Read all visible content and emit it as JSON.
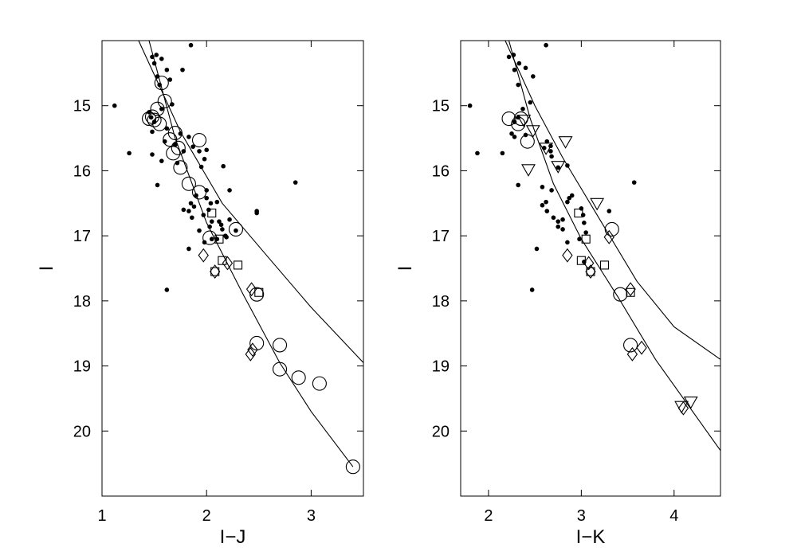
{
  "chart_data": [
    {
      "type": "scatter",
      "title": "",
      "xlabel": "I−J",
      "ylabel": "I",
      "xlim": [
        1.0,
        3.5
      ],
      "ylim": [
        21.0,
        14.0
      ],
      "y_inverted": true,
      "grid": false,
      "x_ticks": [
        "1",
        "2",
        "3"
      ],
      "y_ticks": [
        "15",
        "16",
        "17",
        "18",
        "19",
        "20"
      ],
      "series": [
        {
          "marker": "dot",
          "points": [
            [
              1.48,
              14.25
            ],
            [
              1.52,
              14.22
            ],
            [
              1.57,
              14.28
            ],
            [
              1.62,
              14.45
            ],
            [
              1.5,
              14.35
            ],
            [
              1.77,
              14.45
            ],
            [
              1.85,
              14.07
            ],
            [
              1.53,
              14.55
            ],
            [
              1.65,
              14.6
            ],
            [
              1.55,
              14.68
            ],
            [
              1.67,
              14.98
            ],
            [
              1.12,
              15.0
            ],
            [
              1.57,
              15.05
            ],
            [
              1.45,
              15.1
            ],
            [
              1.47,
              15.18
            ],
            [
              1.5,
              15.25
            ],
            [
              1.62,
              15.35
            ],
            [
              1.48,
              15.4
            ],
            [
              1.75,
              15.43
            ],
            [
              1.83,
              15.48
            ],
            [
              1.6,
              15.55
            ],
            [
              1.87,
              15.63
            ],
            [
              1.7,
              15.6
            ],
            [
              1.78,
              15.7
            ],
            [
              1.26,
              15.73
            ],
            [
              1.48,
              15.75
            ],
            [
              1.93,
              15.7
            ],
            [
              2.0,
              15.68
            ],
            [
              1.98,
              15.82
            ],
            [
              1.57,
              15.85
            ],
            [
              1.72,
              15.88
            ],
            [
              1.95,
              15.94
            ],
            [
              2.16,
              15.93
            ],
            [
              1.53,
              16.22
            ],
            [
              2.0,
              16.3
            ],
            [
              2.22,
              16.3
            ],
            [
              1.9,
              16.38
            ],
            [
              2.0,
              16.42
            ],
            [
              2.04,
              16.5
            ],
            [
              2.1,
              16.48
            ],
            [
              1.85,
              16.5
            ],
            [
              1.88,
              16.55
            ],
            [
              1.83,
              16.62
            ],
            [
              1.78,
              16.6
            ],
            [
              2.02,
              16.6
            ],
            [
              1.97,
              16.68
            ],
            [
              1.86,
              16.72
            ],
            [
              2.22,
              16.75
            ],
            [
              2.12,
              16.78
            ],
            [
              2.05,
              16.78
            ],
            [
              2.14,
              16.83
            ],
            [
              2.03,
              16.86
            ],
            [
              2.15,
              16.9
            ],
            [
              2.28,
              16.92
            ],
            [
              1.93,
              16.92
            ],
            [
              2.18,
              17.0
            ],
            [
              2.05,
              17.05
            ],
            [
              2.1,
              17.05
            ],
            [
              2.19,
              17.02
            ],
            [
              1.98,
              17.1
            ],
            [
              1.83,
              17.2
            ],
            [
              2.48,
              16.62
            ],
            [
              2.48,
              16.65
            ],
            [
              2.85,
              16.18
            ],
            [
              1.62,
              17.83
            ]
          ]
        },
        {
          "marker": "open-circle",
          "points": [
            [
              1.57,
              14.65
            ],
            [
              1.6,
              14.93
            ],
            [
              1.53,
              15.05
            ],
            [
              1.48,
              15.17
            ],
            [
              1.5,
              15.22
            ],
            [
              1.45,
              15.2
            ],
            [
              1.55,
              15.28
            ],
            [
              1.7,
              15.42
            ],
            [
              1.65,
              15.52
            ],
            [
              1.73,
              15.65
            ],
            [
              1.68,
              15.73
            ],
            [
              1.93,
              15.53
            ],
            [
              1.75,
              15.95
            ],
            [
              1.83,
              16.2
            ],
            [
              1.93,
              16.33
            ],
            [
              2.03,
              17.03
            ],
            [
              2.28,
              16.9
            ],
            [
              2.48,
              17.9
            ],
            [
              2.48,
              18.65
            ],
            [
              2.7,
              18.68
            ],
            [
              2.7,
              19.05
            ],
            [
              2.88,
              19.18
            ],
            [
              3.08,
              19.27
            ],
            [
              3.4,
              20.55
            ]
          ]
        },
        {
          "marker": "open-square",
          "points": [
            [
              2.05,
              16.65
            ],
            [
              2.12,
              17.05
            ],
            [
              2.15,
              17.38
            ],
            [
              2.3,
              17.45
            ],
            [
              2.08,
              17.55
            ],
            [
              2.5,
              17.87
            ]
          ]
        },
        {
          "marker": "open-diamond",
          "points": [
            [
              1.97,
              17.3
            ],
            [
              2.2,
              17.42
            ],
            [
              2.08,
              17.55
            ],
            [
              2.43,
              17.82
            ],
            [
              2.44,
              18.75
            ],
            [
              2.42,
              18.82
            ]
          ]
        }
      ],
      "curves": [
        {
          "name": "",
          "points": [
            [
              1.35,
              14.0
            ],
            [
              1.75,
              15.4
            ],
            [
              2.15,
              16.5
            ],
            [
              2.6,
              17.35
            ],
            [
              3.0,
              18.1
            ],
            [
              3.5,
              18.95
            ]
          ]
        },
        {
          "name": "",
          "points": [
            [
              1.45,
              14.0
            ],
            [
              1.7,
              15.5
            ],
            [
              2.0,
              16.8
            ],
            [
              2.35,
              17.9
            ],
            [
              2.7,
              18.95
            ],
            [
              3.0,
              19.7
            ],
            [
              3.4,
              20.55
            ]
          ]
        }
      ]
    },
    {
      "type": "scatter",
      "title": "",
      "xlabel": "I−K",
      "ylabel": "I",
      "xlim": [
        1.7,
        4.5
      ],
      "ylim": [
        21.0,
        14.0
      ],
      "y_inverted": true,
      "grid": false,
      "x_ticks": [
        "2",
        "3",
        "4"
      ],
      "y_ticks": [
        "15",
        "16",
        "17",
        "18",
        "19",
        "20"
      ],
      "series": [
        {
          "marker": "dot",
          "points": [
            [
              2.22,
              14.25
            ],
            [
              2.27,
              14.22
            ],
            [
              2.33,
              14.35
            ],
            [
              2.4,
              14.42
            ],
            [
              2.28,
              14.45
            ],
            [
              2.48,
              14.55
            ],
            [
              2.62,
              14.07
            ],
            [
              2.32,
              14.68
            ],
            [
              2.45,
              14.95
            ],
            [
              1.8,
              15.0
            ],
            [
              2.37,
              15.05
            ],
            [
              2.32,
              15.18
            ],
            [
              2.28,
              15.25
            ],
            [
              2.25,
              15.43
            ],
            [
              2.28,
              15.48
            ],
            [
              2.4,
              15.45
            ],
            [
              2.63,
              15.55
            ],
            [
              2.67,
              15.62
            ],
            [
              2.6,
              15.65
            ],
            [
              2.67,
              15.7
            ],
            [
              1.88,
              15.73
            ],
            [
              2.15,
              15.73
            ],
            [
              2.68,
              15.78
            ],
            [
              2.85,
              15.92
            ],
            [
              2.75,
              15.95
            ],
            [
              2.32,
              16.22
            ],
            [
              2.58,
              16.25
            ],
            [
              2.68,
              16.3
            ],
            [
              2.9,
              16.38
            ],
            [
              2.87,
              16.42
            ],
            [
              2.85,
              16.48
            ],
            [
              2.62,
              16.48
            ],
            [
              2.58,
              16.53
            ],
            [
              3.0,
              16.58
            ],
            [
              2.63,
              16.62
            ],
            [
              3.02,
              16.68
            ],
            [
              2.7,
              16.72
            ],
            [
              2.8,
              16.75
            ],
            [
              2.75,
              16.78
            ],
            [
              3.03,
              16.8
            ],
            [
              2.75,
              16.86
            ],
            [
              2.8,
              16.9
            ],
            [
              3.05,
              16.95
            ],
            [
              2.98,
              17.05
            ],
            [
              2.85,
              17.1
            ],
            [
              2.52,
              17.2
            ],
            [
              3.03,
              17.4
            ],
            [
              3.3,
              16.62
            ],
            [
              3.57,
              16.18
            ],
            [
              2.47,
              17.83
            ]
          ]
        },
        {
          "marker": "open-circle",
          "points": [
            [
              2.35,
              15.2
            ],
            [
              2.22,
              15.2
            ],
            [
              2.32,
              15.28
            ],
            [
              2.42,
              15.55
            ],
            [
              3.33,
              16.9
            ],
            [
              3.42,
              17.9
            ],
            [
              3.53,
              18.68
            ]
          ]
        },
        {
          "marker": "open-square",
          "points": [
            [
              2.97,
              16.65
            ],
            [
              3.05,
              17.05
            ],
            [
              3.0,
              17.38
            ],
            [
              3.25,
              17.45
            ],
            [
              3.1,
              17.55
            ],
            [
              3.53,
              17.87
            ]
          ]
        },
        {
          "marker": "open-diamond",
          "points": [
            [
              2.85,
              17.3
            ],
            [
              3.08,
              17.42
            ],
            [
              3.1,
              17.55
            ],
            [
              3.3,
              17.02
            ],
            [
              3.53,
              17.82
            ],
            [
              3.55,
              18.82
            ],
            [
              3.65,
              18.72
            ],
            [
              4.1,
              19.65
            ]
          ]
        },
        {
          "marker": "open-triangle-down",
          "points": [
            [
              2.38,
              15.22
            ],
            [
              2.48,
              15.38
            ],
            [
              2.62,
              15.65
            ],
            [
              2.83,
              15.55
            ],
            [
              2.75,
              15.93
            ],
            [
              2.43,
              15.98
            ],
            [
              3.17,
              16.5
            ],
            [
              4.18,
              19.55
            ],
            [
              4.08,
              19.62
            ]
          ]
        }
      ],
      "curves": [
        {
          "name": "",
          "points": [
            [
              2.18,
              14.0
            ],
            [
              2.5,
              15.0
            ],
            [
              2.8,
              15.8
            ],
            [
              3.2,
              16.75
            ],
            [
              3.6,
              17.7
            ],
            [
              4.0,
              18.4
            ],
            [
              4.5,
              18.9
            ]
          ]
        },
        {
          "name": "",
          "points": [
            [
              2.22,
              14.0
            ],
            [
              2.45,
              15.2
            ],
            [
              2.7,
              16.2
            ],
            [
              3.0,
              17.05
            ],
            [
              3.4,
              17.95
            ],
            [
              3.8,
              18.9
            ],
            [
              4.2,
              19.7
            ],
            [
              4.5,
              20.3
            ]
          ]
        }
      ]
    }
  ]
}
